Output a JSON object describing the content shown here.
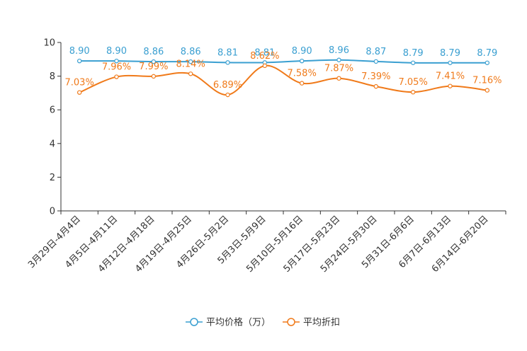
{
  "chart_data": {
    "type": "line",
    "title": "",
    "xlabel": "",
    "ylabel": "",
    "ylim": [
      0,
      10
    ],
    "yticks": [
      0,
      2,
      4,
      6,
      8,
      10
    ],
    "categories": [
      "3月29日-4月4日",
      "4月5日-4月11日",
      "4月12日-4月18日",
      "4月19日-4月25日",
      "4月26日-5月2日",
      "5月3日-5月9日",
      "5月10日-5月16日",
      "5月17日-5月23日",
      "5月24日-5月30日",
      "5月31日-6月6日",
      "6月7日-6月13日",
      "6月14日-6月20日"
    ],
    "series": [
      {
        "name": "平均价格（万）",
        "color": "#3a9fd1",
        "values": [
          8.9,
          8.9,
          8.86,
          8.86,
          8.81,
          8.81,
          8.9,
          8.96,
          8.87,
          8.79,
          8.79,
          8.79
        ],
        "labels": [
          "8.90",
          "8.90",
          "8.86",
          "8.86",
          "8.81",
          "8.81",
          "8.90",
          "8.96",
          "8.87",
          "8.79",
          "8.79",
          "8.79"
        ]
      },
      {
        "name": "平均折扣",
        "color": "#f07a1a",
        "values": [
          7.03,
          7.96,
          7.99,
          8.14,
          6.89,
          8.62,
          7.58,
          7.87,
          7.39,
          7.05,
          7.41,
          7.16
        ],
        "labels": [
          "7.03%",
          "7.96%",
          "7.99%",
          "8.14%",
          "6.89%",
          "8.62%",
          "7.58%",
          "7.87%",
          "7.39%",
          "7.05%",
          "7.41%",
          "7.16%"
        ]
      }
    ],
    "legend_position": "bottom-center"
  }
}
